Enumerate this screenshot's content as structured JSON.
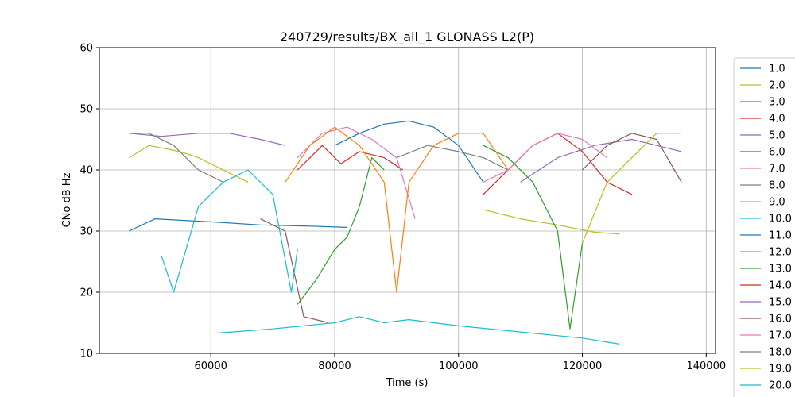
{
  "chart_data": {
    "type": "line",
    "title": "240729/results/BX_all_1 GLONASS L2(P)",
    "xlabel": "Time (s)",
    "ylabel": "CNo dB Hz",
    "xlim": [
      42000,
      141500
    ],
    "ylim": [
      10,
      60
    ],
    "xticks": [
      60000,
      80000,
      100000,
      120000,
      140000
    ],
    "yticks": [
      10,
      20,
      30,
      40,
      50,
      60
    ],
    "grid": true,
    "legend_position": "right-outside",
    "series": [
      {
        "name": "1.0",
        "color": "#1f77b4",
        "points": [
          [
            46800,
            30
          ],
          [
            51000,
            32
          ],
          [
            60000,
            31.5
          ],
          [
            68000,
            31
          ],
          [
            76000,
            30.8
          ],
          [
            82000,
            30.6
          ]
        ]
      },
      {
        "name": "2.0",
        "color": "#bcbd22",
        "points": [
          [
            104000,
            33.5
          ],
          [
            110000,
            32
          ],
          [
            116000,
            31
          ],
          [
            122000,
            29.8
          ],
          [
            126000,
            29.5
          ]
        ]
      },
      {
        "name": "3.0",
        "color": "#2ca02c",
        "points": [
          [
            74000,
            18
          ],
          [
            77000,
            22
          ],
          [
            80000,
            27
          ],
          [
            82000,
            29
          ],
          [
            84000,
            34
          ],
          [
            86000,
            42
          ],
          [
            88000,
            40
          ]
        ]
      },
      {
        "name": "4.0",
        "color": "#d62728",
        "points": [
          [
            74000,
            40
          ],
          [
            78000,
            44
          ],
          [
            81000,
            41
          ],
          [
            84000,
            43
          ],
          [
            88000,
            42
          ],
          [
            91000,
            40
          ]
        ]
      },
      {
        "name": "5.0",
        "color": "#9467bd",
        "points": [
          [
            46800,
            46
          ],
          [
            52000,
            45.5
          ],
          [
            58000,
            46
          ],
          [
            63000,
            46
          ],
          [
            68000,
            45
          ],
          [
            72000,
            44
          ]
        ]
      },
      {
        "name": "6.0",
        "color": "#8c564b",
        "points": [
          [
            68000,
            32
          ],
          [
            72000,
            30
          ],
          [
            75000,
            16
          ],
          [
            79000,
            15
          ]
        ]
      },
      {
        "name": "7.0",
        "color": "#e377c2",
        "points": [
          [
            74000,
            42
          ],
          [
            78000,
            46
          ],
          [
            82000,
            47
          ],
          [
            86000,
            45
          ],
          [
            90000,
            42
          ],
          [
            93000,
            32
          ]
        ]
      },
      {
        "name": "8.0",
        "color": "#7f7f7f",
        "points": [
          [
            90000,
            42
          ],
          [
            95000,
            44
          ],
          [
            100000,
            43
          ],
          [
            104000,
            42
          ],
          [
            108000,
            40
          ]
        ]
      },
      {
        "name": "9.0",
        "color": "#bcbd22",
        "points": [
          [
            46800,
            42
          ],
          [
            50000,
            44
          ],
          [
            55000,
            43
          ],
          [
            58000,
            42
          ],
          [
            62000,
            40
          ],
          [
            66000,
            38
          ]
        ]
      },
      {
        "name": "10.0",
        "color": "#17becf",
        "points": [
          [
            60800,
            13.3
          ],
          [
            70000,
            14
          ],
          [
            80000,
            15
          ],
          [
            84000,
            16
          ],
          [
            88000,
            15
          ],
          [
            92000,
            15.5
          ],
          [
            100000,
            14.5
          ],
          [
            110000,
            13.5
          ],
          [
            120000,
            12.5
          ],
          [
            126000,
            11.5
          ]
        ]
      },
      {
        "name": "11.0",
        "color": "#1f77b4",
        "points": [
          [
            80000,
            44
          ],
          [
            84000,
            46
          ],
          [
            88000,
            47.5
          ],
          [
            92000,
            48
          ],
          [
            96000,
            47
          ],
          [
            100000,
            44
          ],
          [
            104000,
            38
          ]
        ]
      },
      {
        "name": "12.0",
        "color": "#ff7f0e",
        "points": [
          [
            72000,
            38
          ],
          [
            76000,
            44
          ],
          [
            80000,
            47
          ],
          [
            84000,
            44
          ],
          [
            88000,
            38
          ],
          [
            90000,
            20
          ],
          [
            92000,
            38
          ],
          [
            96000,
            44
          ],
          [
            100000,
            46
          ],
          [
            104000,
            46
          ],
          [
            108000,
            40
          ]
        ]
      },
      {
        "name": "13.0",
        "color": "#2ca02c",
        "points": [
          [
            104000,
            44
          ],
          [
            108000,
            42
          ],
          [
            112000,
            38
          ],
          [
            116000,
            30
          ],
          [
            118000,
            14
          ],
          [
            120000,
            28
          ]
        ]
      },
      {
        "name": "14.0",
        "color": "#d62728",
        "points": [
          [
            104000,
            36
          ],
          [
            108000,
            40
          ],
          [
            112000,
            44
          ],
          [
            116000,
            46
          ],
          [
            120000,
            43
          ],
          [
            124000,
            38
          ],
          [
            128000,
            36
          ]
        ]
      },
      {
        "name": "15.0",
        "color": "#9467bd",
        "points": [
          [
            110000,
            38
          ],
          [
            116000,
            42
          ],
          [
            122000,
            44
          ],
          [
            128000,
            45
          ],
          [
            132000,
            44
          ],
          [
            136000,
            43
          ]
        ]
      },
      {
        "name": "16.0",
        "color": "#8c564b",
        "points": [
          [
            120000,
            40
          ],
          [
            124000,
            44
          ],
          [
            128000,
            46
          ],
          [
            132000,
            45
          ],
          [
            136000,
            38
          ]
        ]
      },
      {
        "name": "17.0",
        "color": "#e377c2",
        "points": [
          [
            104000,
            38
          ],
          [
            108000,
            40
          ],
          [
            112000,
            44
          ],
          [
            116000,
            46
          ],
          [
            120000,
            45
          ],
          [
            124000,
            42
          ]
        ]
      },
      {
        "name": "18.0",
        "color": "#7f7f7f",
        "points": [
          [
            46800,
            46
          ],
          [
            50000,
            46
          ],
          [
            54000,
            44
          ],
          [
            58000,
            40
          ],
          [
            62000,
            38
          ]
        ]
      },
      {
        "name": "19.0",
        "color": "#bcbd22",
        "points": [
          [
            120000,
            28
          ],
          [
            124000,
            38
          ],
          [
            128000,
            42
          ],
          [
            132000,
            46
          ],
          [
            136000,
            46
          ]
        ]
      },
      {
        "name": "20.0",
        "color": "#17becf",
        "points": [
          [
            52000,
            26
          ],
          [
            54000,
            20
          ],
          [
            58000,
            34
          ],
          [
            62000,
            38
          ],
          [
            66000,
            40
          ],
          [
            70000,
            36
          ],
          [
            73000,
            20
          ],
          [
            74000,
            27
          ]
        ]
      }
    ]
  }
}
